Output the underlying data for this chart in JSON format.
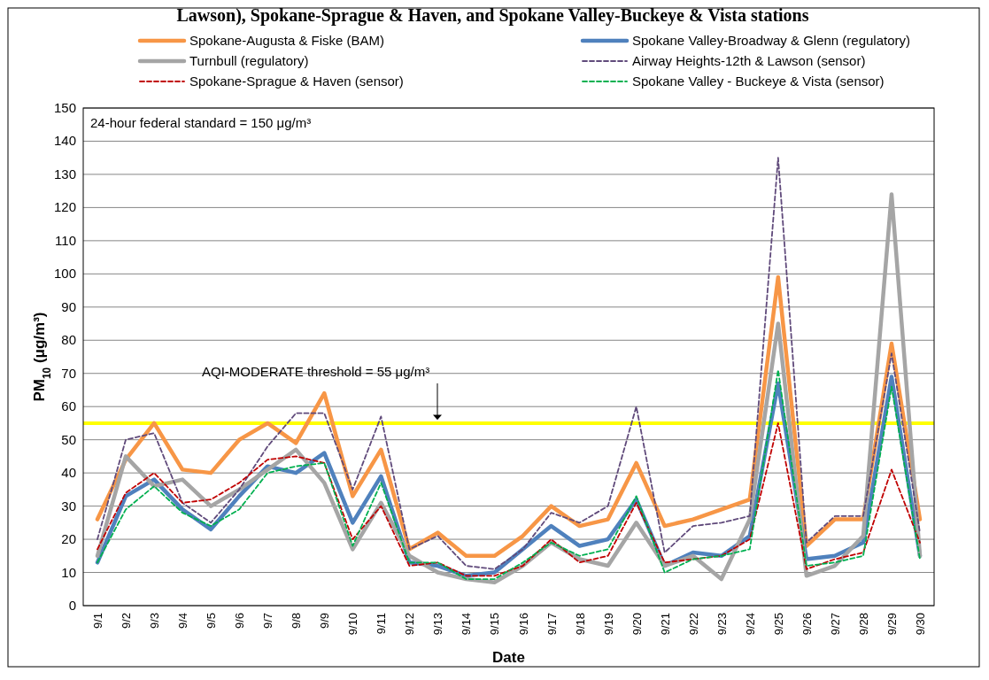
{
  "chart_data": {
    "type": "line",
    "title": "Lawson), Spokane-Sprague & Haven, and Spokane Valley-Buckeye & Vista stations",
    "xlabel": "Date",
    "ylabel": "PM$_{10}$ (μg/m³)",
    "categories": [
      "9/1",
      "9/2",
      "9/3",
      "9/4",
      "9/5",
      "9/6",
      "9/7",
      "9/8",
      "9/9",
      "9/10",
      "9/11",
      "9/12",
      "9/13",
      "9/14",
      "9/15",
      "9/16",
      "9/17",
      "9/18",
      "9/19",
      "9/20",
      "9/21",
      "9/22",
      "9/23",
      "9/24",
      "9/25",
      "9/26",
      "9/27",
      "9/28",
      "9/29",
      "9/30"
    ],
    "series": [
      {
        "name": "Spokane-Augusta & Fiske (BAM)",
        "color": "#f79646",
        "line_style": "solid",
        "values": [
          26,
          44,
          55,
          41,
          40,
          50,
          55,
          49,
          64,
          33,
          47,
          17,
          22,
          15,
          15,
          21,
          30,
          24,
          26,
          43,
          24,
          26,
          29,
          32,
          99,
          18,
          26,
          26,
          79,
          26
        ]
      },
      {
        "name": "Spokane Valley-Broadway & Glenn (regulatory)",
        "color": "#4f81bd",
        "line_style": "solid",
        "values": [
          13,
          33,
          38,
          29,
          23,
          33,
          42,
          40,
          46,
          25,
          39,
          13,
          12,
          9,
          10,
          17,
          24,
          18,
          20,
          32,
          12,
          16,
          15,
          21,
          67,
          14,
          15,
          19,
          69,
          15
        ]
      },
      {
        "name": "Turnbull (regulatory)",
        "color": "#a5a5a5",
        "line_style": "solid",
        "values": [
          15,
          45,
          36,
          38,
          30,
          35,
          41,
          47,
          37,
          17,
          31,
          15,
          10,
          8,
          7,
          12,
          19,
          14,
          12,
          25,
          12,
          15,
          8,
          26,
          85,
          9,
          12,
          21,
          124,
          15
        ]
      },
      {
        "name": "Airway Heights-12th & Lawson (sensor)",
        "color": "#604a7b",
        "line_style": "dashed",
        "values": [
          20,
          50,
          52,
          31,
          25,
          35,
          48,
          58,
          58,
          35,
          57,
          17,
          21,
          12,
          11,
          17,
          28,
          25,
          30,
          60,
          16,
          24,
          25,
          27,
          135,
          19,
          27,
          27,
          76,
          22
        ]
      },
      {
        "name": "Spokane-Sprague & Haven (sensor)",
        "color": "#c00000",
        "line_style": "dashed",
        "values": [
          17,
          34,
          40,
          31,
          32,
          37,
          44,
          45,
          43,
          20,
          30,
          12,
          13,
          9,
          9,
          12,
          20,
          13,
          15,
          31,
          13,
          14,
          15,
          20,
          55,
          11,
          14,
          16,
          41,
          19
        ]
      },
      {
        "name": "Spokane Valley - Buckeye & Vista (sensor)",
        "color": "#00b050",
        "line_style": "dashed",
        "values": [
          13,
          29,
          36,
          28,
          24,
          29,
          40,
          42,
          43,
          18,
          37,
          13,
          13,
          8,
          8,
          13,
          19,
          15,
          17,
          33,
          10,
          14,
          15,
          17,
          71,
          12,
          13,
          15,
          66,
          14
        ]
      }
    ],
    "ylim": [
      0,
      150
    ],
    "yticks": [
      0,
      10,
      20,
      30,
      40,
      50,
      60,
      70,
      80,
      90,
      100,
      110,
      120,
      130,
      140,
      150
    ],
    "grid": "y",
    "legend": "top",
    "ref_lines": [
      {
        "axis": "y",
        "value": 55,
        "label": "AQI-MODERATE threshold = 55 μg/m³",
        "color": "#ffff00"
      }
    ],
    "annotations": [
      "24-hour federal standard = 150 μg/m³"
    ]
  }
}
